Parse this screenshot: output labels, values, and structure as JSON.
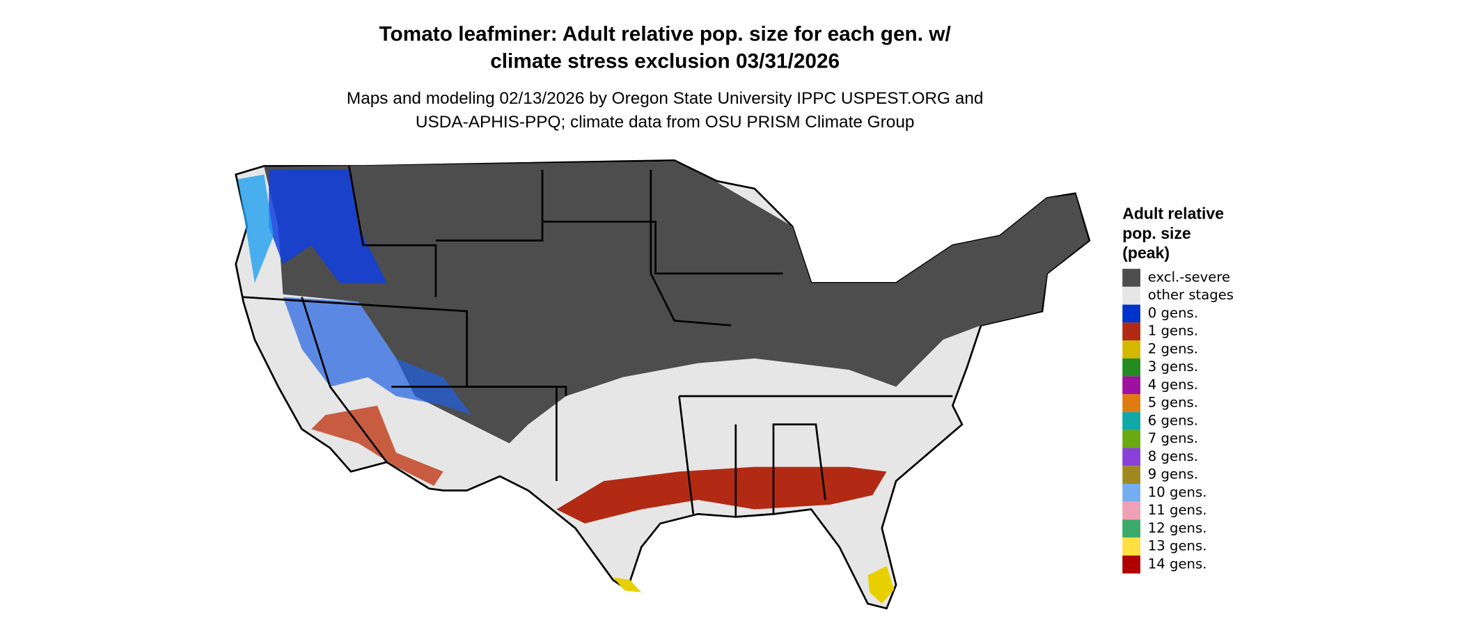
{
  "title": [
    "Tomato leafminer: Adult relative pop. size for each gen. w/",
    "climate stress exclusion 03/31/2026"
  ],
  "subtitle": [
    "Maps and modeling 02/13/2026 by Oregon State University IPPC USPEST.ORG and",
    "USDA-APHIS-PPQ; climate data from OSU PRISM Climate Group"
  ],
  "legend": {
    "title": [
      "Adult relative",
      "pop. size",
      "(peak)"
    ],
    "items": [
      {
        "label": "excl.-severe",
        "color": "#4d4d4d"
      },
      {
        "label": "other stages",
        "color": "#e6e6e6"
      },
      {
        "label": "0 gens.",
        "color": "#0033cc"
      },
      {
        "label": "1 gens.",
        "color": "#b22a13"
      },
      {
        "label": "2 gens.",
        "color": "#d4b800"
      },
      {
        "label": "3 gens.",
        "color": "#228b22"
      },
      {
        "label": "4 gens.",
        "color": "#a010a0"
      },
      {
        "label": "5 gens.",
        "color": "#e07b10"
      },
      {
        "label": "6 gens.",
        "color": "#10a8a8"
      },
      {
        "label": "7 gens.",
        "color": "#6aaa10"
      },
      {
        "label": "8 gens.",
        "color": "#8a40d8"
      },
      {
        "label": "9 gens.",
        "color": "#a08a20"
      },
      {
        "label": "10 gens.",
        "color": "#74aef0"
      },
      {
        "label": "11 gens.",
        "color": "#f0a0b4"
      },
      {
        "label": "12 gens.",
        "color": "#3aaa6a"
      },
      {
        "label": "13 gens.",
        "color": "#ffe040"
      },
      {
        "label": "14 gens.",
        "color": "#b00000"
      }
    ]
  }
}
